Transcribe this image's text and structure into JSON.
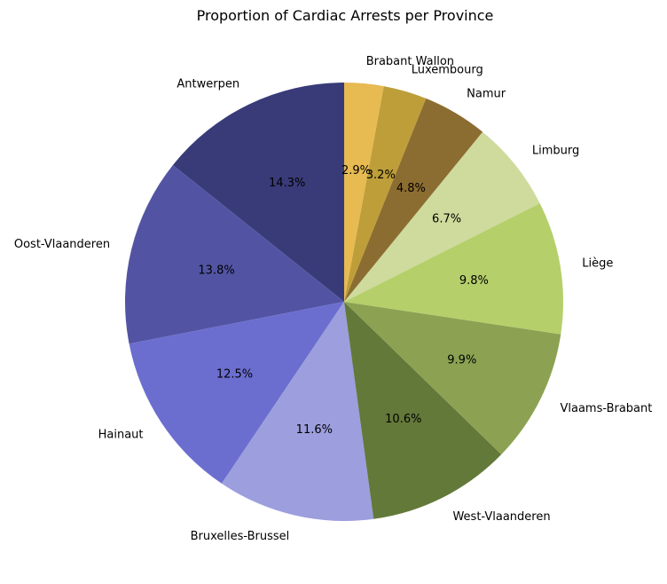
{
  "chart_data": {
    "type": "pie",
    "title": "Proportion of Cardiac Arrests per Province",
    "start_angle_deg": 90,
    "direction": "counterclockwise",
    "legend": "none",
    "slices": [
      {
        "label": "Antwerpen",
        "value": 14.3,
        "pct_label": "14.3%",
        "color": "#393b79"
      },
      {
        "label": "Oost-Vlaanderen",
        "value": 13.8,
        "pct_label": "13.8%",
        "color": "#5254a3"
      },
      {
        "label": "Hainaut",
        "value": 12.5,
        "pct_label": "12.5%",
        "color": "#6b6ecf"
      },
      {
        "label": "Bruxelles-Brussel",
        "value": 11.6,
        "pct_label": "11.6%",
        "color": "#9c9ede"
      },
      {
        "label": "West-Vlaanderen",
        "value": 10.6,
        "pct_label": "10.6%",
        "color": "#637939"
      },
      {
        "label": "Vlaams-Brabant",
        "value": 9.9,
        "pct_label": "9.9%",
        "color": "#8ca252"
      },
      {
        "label": "Liège",
        "value": 9.8,
        "pct_label": "9.8%",
        "color": "#b5cf6b"
      },
      {
        "label": "Limburg",
        "value": 6.7,
        "pct_label": "6.7%",
        "color": "#cedb9c"
      },
      {
        "label": "Namur",
        "value": 4.8,
        "pct_label": "4.8%",
        "color": "#8c6d31"
      },
      {
        "label": "Luxembourg",
        "value": 3.2,
        "pct_label": "3.2%",
        "color": "#bd9e39"
      },
      {
        "label": "Brabant Wallon",
        "value": 2.9,
        "pct_label": "2.9%",
        "color": "#e7ba52"
      }
    ]
  }
}
